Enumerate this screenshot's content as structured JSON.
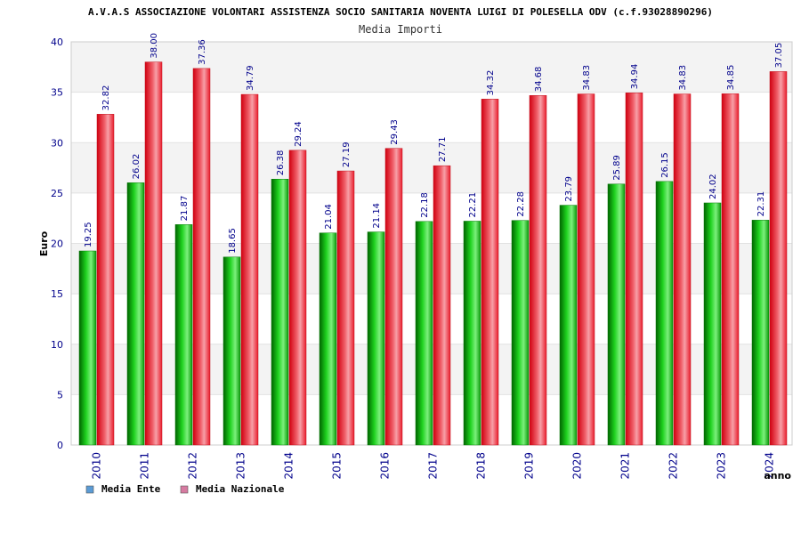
{
  "chart_data": {
    "type": "bar",
    "title": "A.V.A.S ASSOCIAZIONE VOLONTARI ASSISTENZA SOCIO SANITARIA NOVENTA LUIGI DI POLESELLA ODV (c.f.93028890296)",
    "subtitle": "Media Importi",
    "xlabel": "anno",
    "ylabel": "Euro",
    "ylim": [
      0,
      40
    ],
    "yticks": [
      0,
      5,
      10,
      15,
      20,
      25,
      30,
      35,
      40
    ],
    "grid": true,
    "legend_position": "bottom-left",
    "categories": [
      "2010",
      "2011",
      "2012",
      "2013",
      "2014",
      "2015",
      "2016",
      "2017",
      "2018",
      "2019",
      "2020",
      "2021",
      "2022",
      "2023",
      "2024"
    ],
    "series": [
      {
        "name": "Media Ente",
        "color": "#16b816",
        "legend_color": "#5b9bd5",
        "values": [
          19.25,
          26.02,
          21.87,
          18.65,
          26.38,
          21.04,
          21.14,
          22.18,
          22.21,
          22.28,
          23.79,
          25.89,
          26.15,
          24.02,
          22.31
        ],
        "labels": [
          "19.25",
          "26.02",
          "21.87",
          "18.65",
          "26.38",
          "21.04",
          "21.14",
          "22.18",
          "22.21",
          "22.28",
          "23.79",
          "25.89",
          "26.15",
          "24.02",
          "22.31"
        ]
      },
      {
        "name": "Media Nazionale",
        "color": "#e8202e",
        "legend_color": "#d67ba1",
        "values": [
          32.82,
          38.0,
          37.36,
          34.79,
          29.24,
          27.19,
          29.43,
          27.71,
          34.32,
          34.68,
          34.83,
          34.94,
          34.83,
          34.85,
          37.05
        ],
        "labels": [
          "32.82",
          "38.00",
          "37.36",
          "34.79",
          "29.24",
          "27.19",
          "29.43",
          "27.71",
          "34.32",
          "34.68",
          "34.83",
          "34.94",
          "34.83",
          "34.85",
          "37.05"
        ]
      }
    ]
  }
}
